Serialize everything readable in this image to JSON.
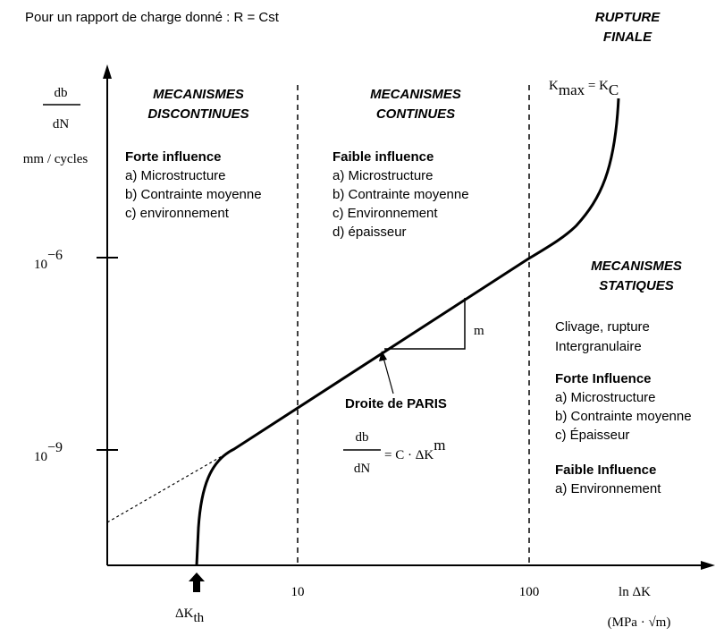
{
  "header": {
    "title": "Pour un rapport de charge donné : R = Cst"
  },
  "axes": {
    "y_label_num": "db",
    "y_label_den": "dN",
    "y_unit": "mm / cycles",
    "y_ticks": [
      {
        "base": "10",
        "exp": "−6"
      },
      {
        "base": "10",
        "exp": "−9"
      }
    ],
    "x_label": "ln ΔK",
    "x_unit": "(MPa · √m)",
    "x_ticks": [
      "10",
      "100"
    ],
    "threshold": {
      "main": "ΔK",
      "sub": "th"
    }
  },
  "final": {
    "title": [
      "RUPTURE",
      "FINALE"
    ],
    "k": "K",
    "k_sub": "max",
    "eq": " = K",
    "eq_sub": "C"
  },
  "regions": [
    {
      "title": [
        "MECANISMES",
        "DISCONTINUES"
      ],
      "groups": [
        {
          "heading": "Forte influence",
          "items": [
            "a) Microstructure",
            "b) Contrainte moyenne",
            "c) environnement"
          ]
        }
      ]
    },
    {
      "title": [
        "MECANISMES",
        "CONTINUES"
      ],
      "groups": [
        {
          "heading": "Faible influence",
          "items": [
            "a) Microstructure",
            "b) Contrainte moyenne",
            "c) Environnement",
            "d) épaisseur"
          ]
        }
      ]
    },
    {
      "title": [
        "MECANISMES",
        "STATIQUES"
      ],
      "lines": [
        "Clivage, rupture",
        "Intergranulaire"
      ],
      "groups": [
        {
          "heading": "Forte Influence",
          "items": [
            "a) Microstructure",
            "b) Contrainte moyenne",
            "c) Épaisseur"
          ]
        },
        {
          "heading": "Faible Influence",
          "items": [
            "a) Environnement"
          ]
        }
      ]
    }
  ],
  "paris": {
    "label": "Droite de PARIS",
    "num": "db",
    "den": "dN",
    "rhs": "= C · ΔK",
    "exp": "m",
    "slope": "m"
  }
}
